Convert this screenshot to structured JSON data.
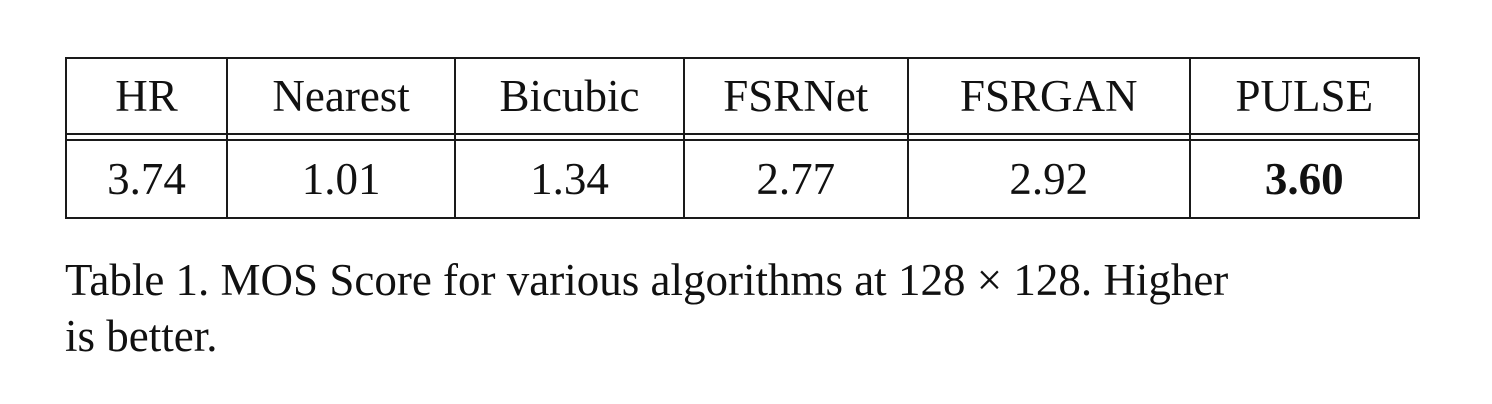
{
  "table": {
    "columns": [
      "HR",
      "Nearest",
      "Bicubic",
      "FSRNet",
      "FSRGAN",
      "PULSE"
    ],
    "values": [
      "3.74",
      "1.01",
      "1.34",
      "2.77",
      "2.92",
      "3.60"
    ],
    "best_column_index": 5
  },
  "caption": {
    "line1": "Table 1. MOS Score for various algorithms at 128 × 128. Higher",
    "line2": "is better."
  }
}
